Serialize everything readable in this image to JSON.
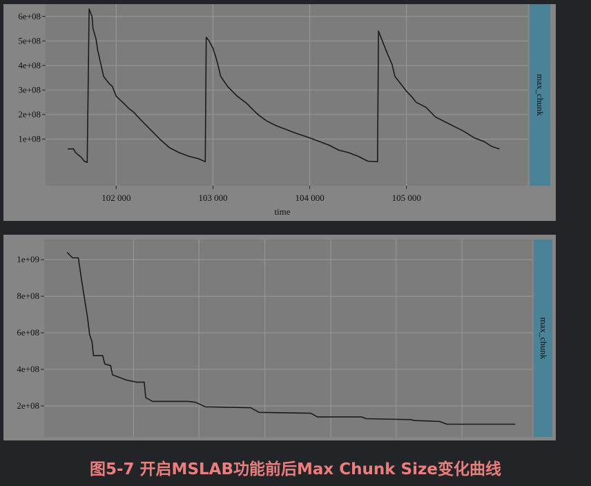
{
  "colors": {
    "page_bg": "#222427",
    "figure_bg": "#858585",
    "panel_bg": "#7c7c7c",
    "strip_bg": "#4a8397",
    "grid": "#9a9a9a",
    "line": "#1a1a1a",
    "caption": "#ec7f7d"
  },
  "caption": "图5-7 开启MSLAB功能前后Max Chunk Size变化曲线",
  "chart_data": [
    {
      "type": "line",
      "strip_label": "max_chunk",
      "xlabel": "time",
      "xlim": [
        101270,
        106250
      ],
      "ylim": [
        -90000000,
        650000000
      ],
      "x_ticks": [
        102000,
        103000,
        104000,
        105000
      ],
      "x_tick_labels": [
        "102 000",
        "103 000",
        "104 000",
        "105 000"
      ],
      "y_ticks": [
        100000000,
        200000000,
        300000000,
        400000000,
        500000000,
        600000000
      ],
      "y_tick_labels": [
        "1e+08",
        "2e+08",
        "3e+08",
        "4e+08",
        "5e+08",
        "6e+08"
      ],
      "grid": true,
      "series": [
        {
          "points": [
            [
              101500,
              60000000
            ],
            [
              101560,
              60000000
            ],
            [
              101580,
              45000000
            ],
            [
              101610,
              35000000
            ],
            [
              101640,
              25000000
            ],
            [
              101670,
              10000000
            ],
            [
              101700,
              5000000
            ],
            [
              101720,
              630000000
            ],
            [
              101750,
              600000000
            ],
            [
              101760,
              550000000
            ],
            [
              101790,
              510000000
            ],
            [
              101810,
              460000000
            ],
            [
              101830,
              425000000
            ],
            [
              101850,
              390000000
            ],
            [
              101870,
              355000000
            ],
            [
              101900,
              340000000
            ],
            [
              101930,
              325000000
            ],
            [
              101960,
              315000000
            ],
            [
              102000,
              275000000
            ],
            [
              102080,
              245000000
            ],
            [
              102130,
              225000000
            ],
            [
              102180,
              210000000
            ],
            [
              102250,
              180000000
            ],
            [
              102350,
              140000000
            ],
            [
              102450,
              100000000
            ],
            [
              102550,
              65000000
            ],
            [
              102650,
              45000000
            ],
            [
              102750,
              30000000
            ],
            [
              102850,
              20000000
            ],
            [
              102920,
              8000000
            ],
            [
              102930,
              515000000
            ],
            [
              102960,
              500000000
            ],
            [
              103000,
              470000000
            ],
            [
              103040,
              420000000
            ],
            [
              103080,
              355000000
            ],
            [
              103150,
              315000000
            ],
            [
              103250,
              275000000
            ],
            [
              103350,
              245000000
            ],
            [
              103450,
              205000000
            ],
            [
              103550,
              175000000
            ],
            [
              103650,
              155000000
            ],
            [
              103750,
              140000000
            ],
            [
              103850,
              125000000
            ],
            [
              104000,
              105000000
            ],
            [
              104100,
              90000000
            ],
            [
              104200,
              75000000
            ],
            [
              104300,
              55000000
            ],
            [
              104400,
              45000000
            ],
            [
              104500,
              30000000
            ],
            [
              104560,
              18000000
            ],
            [
              104600,
              10000000
            ],
            [
              104700,
              8000000
            ],
            [
              104710,
              540000000
            ],
            [
              104750,
              500000000
            ],
            [
              104800,
              450000000
            ],
            [
              104850,
              405000000
            ],
            [
              104880,
              355000000
            ],
            [
              104950,
              320000000
            ],
            [
              105000,
              295000000
            ],
            [
              105060,
              270000000
            ],
            [
              105100,
              250000000
            ],
            [
              105200,
              230000000
            ],
            [
              105300,
              190000000
            ],
            [
              105400,
              170000000
            ],
            [
              105500,
              150000000
            ],
            [
              105600,
              130000000
            ],
            [
              105700,
              105000000
            ],
            [
              105800,
              90000000
            ],
            [
              105880,
              70000000
            ],
            [
              105960,
              60000000
            ]
          ]
        }
      ]
    },
    {
      "type": "line",
      "strip_label": "max_chunk",
      "xlabel": "",
      "xlim": [
        0,
        100
      ],
      "ylim": [
        30000000,
        1110000000
      ],
      "y_ticks": [
        200000000,
        400000000,
        600000000,
        800000000,
        1000000000
      ],
      "y_tick_labels": [
        "2e+08",
        "4e+08",
        "6e+08",
        "8e+08",
        "1e+09"
      ],
      "grid": true,
      "series": [
        {
          "points": [
            [
              4.7,
              1040000000
            ],
            [
              5.8,
              1010000000
            ],
            [
              7.0,
              1010000000
            ],
            [
              7.6,
              900000000
            ],
            [
              8.3,
              780000000
            ],
            [
              8.9,
              680000000
            ],
            [
              9.3,
              590000000
            ],
            [
              9.8,
              550000000
            ],
            [
              10.1,
              475000000
            ],
            [
              12.0,
              475000000
            ],
            [
              12.4,
              430000000
            ],
            [
              13.6,
              420000000
            ],
            [
              14.0,
              370000000
            ],
            [
              15.0,
              360000000
            ],
            [
              17.0,
              340000000
            ],
            [
              18.0,
              335000000
            ],
            [
              19.0,
              330000000
            ],
            [
              20.5,
              330000000
            ],
            [
              20.8,
              245000000
            ],
            [
              21.5,
              235000000
            ],
            [
              22.2,
              225000000
            ],
            [
              29.5,
              225000000
            ],
            [
              31.0,
              220000000
            ],
            [
              33.0,
              195000000
            ],
            [
              42.3,
              190000000
            ],
            [
              44.0,
              165000000
            ],
            [
              54.6,
              160000000
            ],
            [
              56.0,
              140000000
            ],
            [
              65.0,
              140000000
            ],
            [
              66.0,
              130000000
            ],
            [
              75.0,
              125000000
            ],
            [
              76.0,
              120000000
            ],
            [
              81.0,
              115000000
            ],
            [
              82.5,
              100000000
            ],
            [
              96.5,
              100000000
            ]
          ]
        }
      ]
    }
  ]
}
